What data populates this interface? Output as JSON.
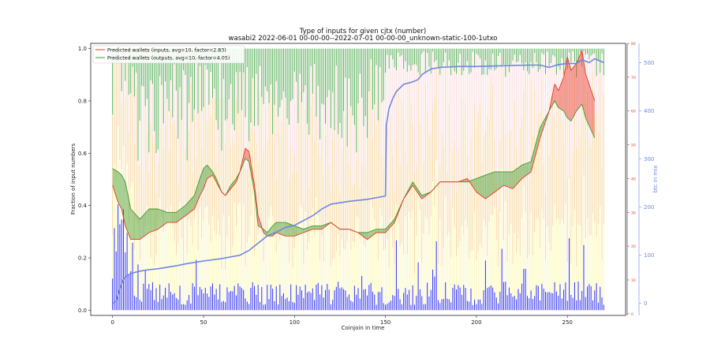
{
  "chart_data": {
    "type": "line",
    "title": "Type of inputs for given cjtx (number)",
    "subtitle": "wasabi2 2022-06-01 00-00-00--2022-07-01 00-00-00_unknown-static-100-1utxo",
    "xlabel": "Coinjoin in time",
    "ylabel": "Fraction of input numbers",
    "y2label": "btc in mix",
    "xlim": [
      -12,
      282
    ],
    "ylim": [
      -0.02,
      1.02
    ],
    "y3lim": [
      -0.5,
      80
    ],
    "y4lim": [
      -25,
      540
    ],
    "x_ticks": [
      "0",
      "50",
      "100",
      "150",
      "200",
      "250"
    ],
    "y_ticks": [
      "0.0",
      "0.2",
      "0.4",
      "0.6",
      "0.8",
      "1.0"
    ],
    "y3_ticks": [
      "0",
      "10",
      "20",
      "30",
      "40",
      "50",
      "60",
      "70",
      "80"
    ],
    "y4_ticks": [
      "0",
      "100",
      "200",
      "300",
      "400",
      "500"
    ],
    "colors": {
      "inputs": "#e8392b",
      "outputs": "#3d9a2f",
      "btc": "#6f86e0",
      "blue_bars": "#2c2cf0",
      "green_bars": "#4aa84a",
      "orange_bars": "#f0b041",
      "yellow_bars": "#f5f27a",
      "pink_bars": "#f2b2b8"
    },
    "series": [
      {
        "name": "Predicted wallets (inputs, avg=10, factor=2.83)",
        "axis": "y3",
        "x": [
          0,
          3,
          5,
          7,
          10,
          15,
          20,
          25,
          30,
          35,
          40,
          45,
          48,
          50,
          52,
          55,
          57,
          60,
          62,
          65,
          68,
          70,
          73,
          75,
          78,
          80,
          83,
          85,
          88,
          90,
          95,
          100,
          105,
          110,
          115,
          120,
          125,
          130,
          135,
          140,
          145,
          150,
          155,
          160,
          165,
          170,
          175,
          180,
          185,
          190,
          195,
          200,
          205,
          210,
          215,
          220,
          225,
          230,
          235,
          240,
          243,
          245,
          248,
          250,
          252,
          255,
          258,
          260,
          265
        ],
        "values": [
          38,
          33,
          31,
          26,
          22,
          22,
          24,
          25,
          27,
          27,
          29,
          31,
          35,
          37,
          40,
          41,
          39,
          36,
          35,
          37,
          39,
          42,
          49,
          48,
          38,
          29,
          24,
          23,
          23,
          24,
          23,
          23,
          24,
          25,
          25,
          27,
          25,
          25,
          24,
          22,
          24,
          24,
          27,
          34,
          38,
          34,
          36,
          39,
          39,
          39,
          40,
          36,
          34,
          36,
          38,
          37,
          40,
          42,
          52,
          60,
          68,
          66,
          70,
          76,
          72,
          74,
          78,
          71,
          63
        ]
      },
      {
        "name": "Predicted wallets (outputs, avg=10, factor=4.05)",
        "axis": "y3",
        "x": [
          0,
          3,
          5,
          7,
          10,
          15,
          20,
          25,
          30,
          35,
          40,
          45,
          48,
          50,
          52,
          55,
          57,
          60,
          62,
          65,
          68,
          70,
          73,
          75,
          78,
          80,
          83,
          85,
          88,
          90,
          95,
          100,
          105,
          110,
          115,
          120,
          125,
          130,
          135,
          140,
          145,
          150,
          155,
          160,
          165,
          170,
          175,
          180,
          185,
          190,
          195,
          200,
          205,
          210,
          215,
          220,
          225,
          230,
          235,
          240,
          243,
          245,
          248,
          250,
          252,
          255,
          258,
          260,
          265
        ],
        "values": [
          43,
          42,
          41,
          39,
          31,
          28,
          31,
          31,
          30,
          30,
          32,
          35,
          40,
          43,
          44,
          42,
          40,
          36,
          35,
          38,
          40,
          42,
          46,
          45,
          36,
          26,
          25,
          24,
          26,
          27,
          27,
          26,
          25,
          26,
          26,
          27,
          25,
          25,
          24,
          24,
          25,
          25,
          28,
          34,
          39,
          35,
          36,
          39,
          39,
          39,
          39,
          40,
          41,
          42,
          42,
          42,
          44,
          45,
          55,
          60,
          63,
          61,
          60,
          58,
          57,
          60,
          62,
          58,
          52
        ]
      },
      {
        "name": "btc in mix",
        "axis": "y4",
        "x": [
          0,
          2,
          4,
          6,
          8,
          10,
          15,
          20,
          25,
          30,
          35,
          40,
          50,
          60,
          70,
          75,
          80,
          85,
          90,
          95,
          100,
          105,
          110,
          115,
          120,
          130,
          140,
          150,
          150.5,
          152,
          154,
          156,
          160,
          165,
          168,
          170,
          175,
          180,
          190,
          200,
          210,
          220,
          230,
          235,
          240,
          245,
          250,
          255,
          258,
          260,
          262,
          265,
          270
        ],
        "values": [
          0,
          5,
          30,
          50,
          58,
          62,
          67,
          70,
          72,
          75,
          78,
          82,
          88,
          93,
          100,
          110,
          125,
          140,
          148,
          158,
          162,
          172,
          182,
          196,
          206,
          212,
          216,
          223,
          370,
          405,
          425,
          440,
          455,
          460,
          465,
          475,
          487,
          490,
          492,
          492,
          493,
          494,
          495,
          495,
          490,
          496,
          498,
          498,
          506,
          503,
          500,
          508,
          500
        ]
      }
    ],
    "legend": [
      "Predicted wallets (inputs, avg=10, factor=2.83)",
      "Predicted wallets (outputs, avg=10, factor=4.05)"
    ],
    "legend_position": "top-left",
    "grid": false
  }
}
